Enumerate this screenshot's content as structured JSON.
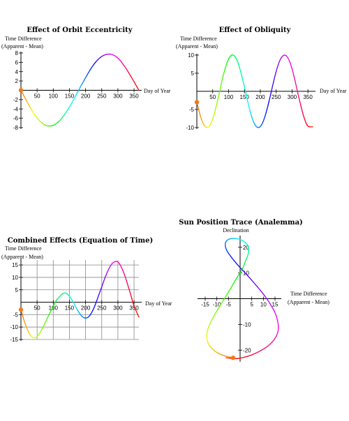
{
  "chart_data": [
    {
      "type": "line",
      "title": "Effect of Orbit Eccentricity",
      "ylabel": [
        "Time Difference",
        "(Apparent - Mean)"
      ],
      "xlabel": "Day of Year",
      "xticks": [
        "50",
        "100",
        "150",
        "200",
        "250",
        "300",
        "350"
      ],
      "yticks": [
        "-8",
        "-6",
        "-4",
        "-2",
        "2",
        "4",
        "6",
        "8"
      ],
      "xlim": [
        0,
        365
      ],
      "ylim": [
        -8,
        8
      ],
      "grid": false,
      "colored_by": "day of year (rainbow hue)",
      "series": [
        {
          "x": [
            0,
            20,
            40,
            60,
            80,
            100,
            120,
            140,
            160,
            180,
            200,
            220,
            240,
            260,
            280,
            300,
            320,
            340,
            365
          ],
          "y": [
            0,
            -2.6,
            -5.0,
            -6.7,
            -7.6,
            -7.5,
            -6.5,
            -4.7,
            -2.4,
            0.2,
            2.7,
            5.0,
            6.7,
            7.6,
            7.7,
            6.9,
            5.2,
            3.0,
            0
          ]
        }
      ],
      "marker": {
        "x": 0,
        "y": 0
      }
    },
    {
      "type": "line",
      "title": "Effect of Obliquity",
      "ylabel": [
        "Time Difference",
        "(Apparent - Mean)"
      ],
      "xlabel": "Day of Year",
      "xticks": [
        "50",
        "100",
        "150",
        "200",
        "250",
        "300",
        "350"
      ],
      "yticks": [
        "-10",
        "-5",
        "5",
        "10"
      ],
      "xlim": [
        0,
        365
      ],
      "ylim": [
        -10,
        10
      ],
      "grid": false,
      "colored_by": "day of year (rainbow hue)",
      "series": [
        {
          "x": [
            0,
            10,
            20,
            30,
            40,
            50,
            60,
            70,
            80,
            90,
            100,
            110,
            120,
            130,
            140,
            150,
            160,
            170,
            180,
            190,
            200,
            210,
            220,
            230,
            240,
            250,
            260,
            270,
            280,
            290,
            300,
            310,
            320,
            330,
            340,
            350,
            365
          ],
          "y": [
            -3.0,
            -6.4,
            -8.9,
            -9.9,
            -9.5,
            -7.6,
            -4.5,
            -0.8,
            3.2,
            6.5,
            8.9,
            10.0,
            9.6,
            7.8,
            4.8,
            1.2,
            -2.7,
            -6.2,
            -8.7,
            -9.9,
            -9.7,
            -8.1,
            -5.3,
            -1.8,
            2.0,
            5.5,
            8.2,
            9.7,
            9.9,
            8.7,
            6.2,
            2.7,
            -1.2,
            -4.8,
            -7.8,
            -9.6,
            -9.8
          ]
        }
      ],
      "marker": {
        "x": 0,
        "y": -3.0
      }
    },
    {
      "type": "line",
      "title": "Combined Effects (Equation of Time)",
      "ylabel": [
        "Time Difference",
        "(Apparent - Mean)"
      ],
      "xlabel": "Day of Year",
      "xticks": [
        "50",
        "100",
        "150",
        "200",
        "250",
        "300",
        "350"
      ],
      "yticks": [
        "-15",
        "-10",
        "-5",
        "5",
        "10",
        "15"
      ],
      "xlim": [
        0,
        365
      ],
      "ylim": [
        -15,
        17
      ],
      "grid": true,
      "colored_by": "day of year (rainbow hue)",
      "series": [
        {
          "x": [
            0,
            10,
            20,
            30,
            40,
            50,
            60,
            70,
            80,
            90,
            100,
            110,
            120,
            130,
            140,
            150,
            160,
            170,
            180,
            190,
            200,
            210,
            220,
            230,
            240,
            250,
            260,
            270,
            280,
            290,
            300,
            310,
            320,
            330,
            340,
            350,
            365
          ],
          "y": [
            -3.0,
            -7.5,
            -11.0,
            -13.4,
            -14.3,
            -13.8,
            -12.0,
            -9.6,
            -6.9,
            -4.2,
            -1.7,
            0.8,
            2.3,
            3.5,
            3.6,
            2.4,
            0.4,
            -2.0,
            -4.2,
            -5.8,
            -6.4,
            -5.8,
            -3.9,
            -1.0,
            2.6,
            6.2,
            9.8,
            12.9,
            15.2,
            16.3,
            16.2,
            14.3,
            11.2,
            7.2,
            2.9,
            -1.5,
            -6.0
          ]
        }
      ],
      "marker": {
        "x": 0,
        "y": -3.0
      }
    },
    {
      "type": "line",
      "title": "Sun Position Trace (Analemma)",
      "ylabel": "Declination",
      "xlabel": [
        "Time Difference",
        "(Apparent - Mean)"
      ],
      "xticks": [
        "-15",
        "-10",
        "-5",
        "5",
        "10",
        "15"
      ],
      "yticks": [
        "-20",
        "-10",
        "10",
        "20"
      ],
      "xlim": [
        -16.5,
        16.5
      ],
      "ylim": [
        -24,
        24
      ],
      "grid": false,
      "colored_by": "day of year (rainbow hue)",
      "series": [
        {
          "x": [
            -3.0,
            -7.5,
            -11.0,
            -13.4,
            -14.3,
            -13.8,
            -12.0,
            -9.6,
            -6.9,
            -4.2,
            -1.7,
            0.8,
            2.3,
            3.5,
            3.6,
            2.4,
            0.4,
            -2.0,
            -4.2,
            -5.8,
            -6.4,
            -5.8,
            -3.9,
            -1.0,
            2.6,
            6.2,
            9.8,
            12.9,
            15.2,
            16.3,
            16.2,
            14.3,
            11.2,
            7.2,
            2.9,
            -1.5,
            -6.0
          ],
          "y": [
            -23.0,
            -22.0,
            -20.3,
            -17.9,
            -15.0,
            -11.7,
            -8.0,
            -4.2,
            -0.2,
            3.8,
            7.7,
            11.3,
            14.6,
            17.5,
            19.9,
            21.7,
            22.9,
            23.4,
            23.3,
            22.5,
            21.0,
            18.9,
            16.3,
            13.1,
            9.6,
            5.9,
            2.0,
            -2.0,
            -5.9,
            -9.6,
            -13.1,
            -16.3,
            -18.9,
            -21.0,
            -22.5,
            -23.3,
            -23.0
          ]
        }
      ],
      "marker": {
        "x": -3.0,
        "y": -23.0
      }
    }
  ]
}
